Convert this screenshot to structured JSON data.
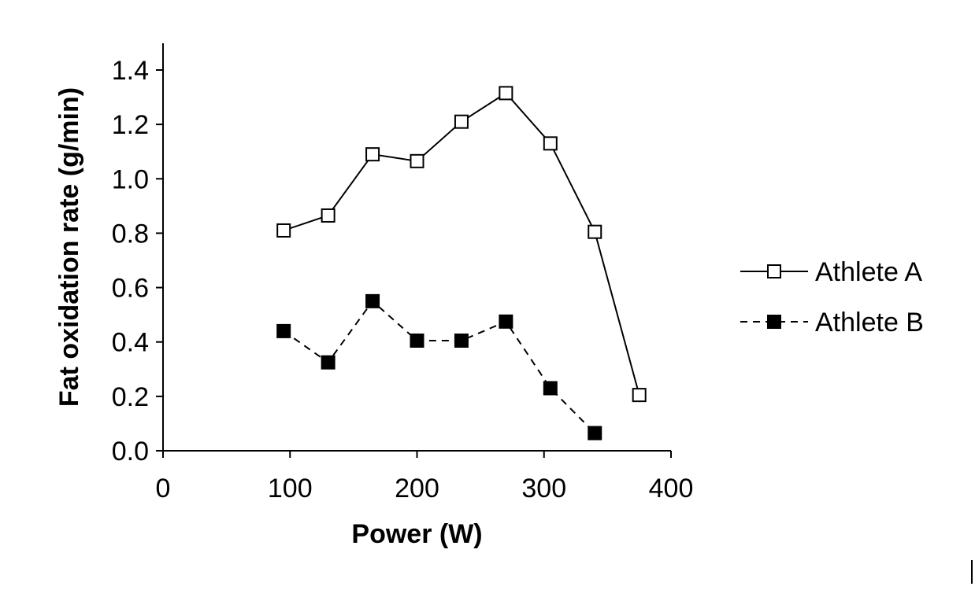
{
  "chart_data": {
    "type": "line",
    "title": "",
    "xlabel": "Power (W)",
    "ylabel": "Fat oxidation rate (g/min)",
    "xlim": [
      0,
      400
    ],
    "ylim": [
      0,
      1.4
    ],
    "xticks": [
      0,
      100,
      200,
      300,
      400
    ],
    "xtick_labels": [
      "0",
      "100",
      "200",
      "300",
      "400"
    ],
    "yticks": [
      0,
      0.2,
      0.4,
      0.6,
      0.8,
      1.0,
      1.2,
      1.4
    ],
    "ytick_labels": [
      "0.0",
      "0.2",
      "0.4",
      "0.6",
      "0.8",
      "1.0",
      "1.2",
      "1.4"
    ],
    "grid": false,
    "legend": "right",
    "series": [
      {
        "name": "Athlete A",
        "style": "solid",
        "marker": "open-square",
        "color": "#000000",
        "x": [
          95,
          130,
          165,
          200,
          235,
          270,
          305,
          340,
          375
        ],
        "y": [
          0.81,
          0.865,
          1.09,
          1.065,
          1.21,
          1.315,
          1.13,
          0.805,
          0.205
        ]
      },
      {
        "name": "Athlete B",
        "style": "dashed",
        "marker": "filled-square",
        "color": "#000000",
        "x": [
          95,
          130,
          165,
          200,
          235,
          270,
          305,
          340
        ],
        "y": [
          0.44,
          0.325,
          0.55,
          0.405,
          0.405,
          0.475,
          0.23,
          0.065
        ]
      }
    ]
  }
}
